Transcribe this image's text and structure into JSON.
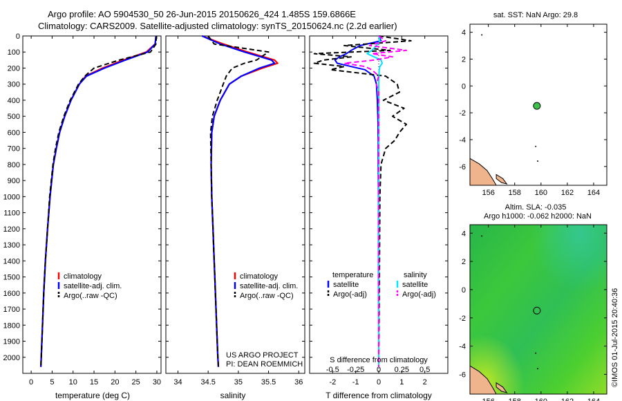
{
  "figure": {
    "title_line1": "Argo profile: AO 5904530_50 26-Jun-2015 20150626_424 1.485S 159.6866E",
    "title_line2": "Climatology: CARS2009. Satellite-adjusted climatology: synTS_20150624.nc (2.2d earlier)",
    "credit": "©IMOS 01-Jul-2015 20:40:36",
    "project_line1": "US ARGO PROJECT",
    "project_line2": "PI: DEAN ROEMMICH",
    "colors": {
      "climatology": "#ff0000",
      "satellite_temp": "#0000ff",
      "argo": "#000000",
      "satellite_sal": "#00e5ff",
      "argo_sal": "#ff00ff",
      "map_ocean": "#3cc24a",
      "land": "#f0b48c"
    }
  },
  "chart_data": [
    {
      "type": "line",
      "id": "temperature",
      "xlabel": "temperature (deg C)",
      "ylabel": "",
      "xlim": [
        -2,
        31
      ],
      "ylim": [
        2100,
        0
      ],
      "xticks": [
        0,
        5,
        10,
        15,
        20,
        25,
        30
      ],
      "yticks": [
        0,
        100,
        200,
        300,
        400,
        500,
        600,
        700,
        800,
        900,
        1000,
        1100,
        1200,
        1300,
        1400,
        1500,
        1600,
        1700,
        1800,
        1900,
        2000
      ],
      "depth": [
        0,
        50,
        100,
        150,
        200,
        250,
        300,
        400,
        500,
        600,
        700,
        800,
        900,
        1000,
        1200,
        1400,
        1600,
        1800,
        2000,
        2060
      ],
      "legend": [
        "climatology",
        "satellite-adj. clim.",
        "Argo(..raw -QC)"
      ],
      "series": [
        {
          "name": "climatology",
          "style": "solid",
          "values": [
            29.8,
            29.6,
            27.5,
            22,
            17,
            13,
            11.5,
            9.5,
            8,
            6.8,
            6,
            5.3,
            4.9,
            4.5,
            3.9,
            3.4,
            3,
            2.7,
            2.4,
            2.3
          ]
        },
        {
          "name": "satellite-adj. clim.",
          "style": "solid",
          "values": [
            29.8,
            29.6,
            27.8,
            22.5,
            17.5,
            13.2,
            11.5,
            9.5,
            8,
            6.8,
            6,
            5.3,
            4.9,
            4.5,
            3.9,
            3.4,
            3,
            2.7,
            2.4,
            2.3
          ]
        },
        {
          "name": "Argo(..raw -QC)",
          "style": "dashed",
          "values": [
            29.9,
            29.8,
            28.5,
            21,
            15,
            12.8,
            11.3,
            9.3,
            7.8,
            6.6,
            5.8,
            5.2,
            4.8,
            4.4,
            3.9,
            3.4,
            3,
            2.7,
            2.4,
            2.3
          ]
        }
      ]
    },
    {
      "type": "line",
      "id": "salinity",
      "xlabel": "salinity",
      "xlim": [
        33.8,
        36.1
      ],
      "ylim": [
        2100,
        0
      ],
      "xticks": [
        34,
        34.5,
        35,
        35.5,
        36
      ],
      "depth": [
        0,
        50,
        100,
        150,
        170,
        200,
        250,
        300,
        400,
        500,
        600,
        800,
        1000,
        1200,
        1400,
        1600,
        1800,
        2000,
        2060
      ],
      "legend": [
        "climatology",
        "satellite-adj. clim.",
        "Argo(..raw -QC)"
      ],
      "series": [
        {
          "name": "climatology",
          "style": "solid",
          "values": [
            34.4,
            34.75,
            35.15,
            35.6,
            35.65,
            35.4,
            35.05,
            34.85,
            34.7,
            34.6,
            34.56,
            34.55,
            34.56,
            34.58,
            34.6,
            34.62,
            34.64,
            34.66,
            34.67
          ]
        },
        {
          "name": "satellite-adj. clim.",
          "style": "solid",
          "values": [
            34.4,
            34.7,
            35.1,
            35.55,
            35.6,
            35.35,
            35.05,
            34.85,
            34.7,
            34.6,
            34.56,
            34.55,
            34.56,
            34.58,
            34.6,
            34.62,
            34.64,
            34.66,
            34.67
          ]
        },
        {
          "name": "Argo(..raw -QC)",
          "style": "dashed",
          "values": [
            34.5,
            34.6,
            35.5,
            35.3,
            35.1,
            34.9,
            34.8,
            34.75,
            34.65,
            34.57,
            34.54,
            34.55,
            34.56,
            34.58,
            34.6,
            34.62,
            34.64,
            34.66,
            34.67
          ]
        }
      ]
    },
    {
      "type": "line",
      "id": "difference",
      "xlabel_bottom": "T difference from climatology",
      "xlabel_top": "S difference from climatology",
      "xlim_T": [
        -3,
        3
      ],
      "xticks_T": [
        -2,
        -1,
        0,
        1,
        2
      ],
      "xtick_labels_S": [
        "-0.5",
        "-0.25",
        "0",
        "0.25",
        "0.5"
      ],
      "ylim": [
        2100,
        0
      ],
      "depth": [
        0,
        30,
        60,
        90,
        110,
        130,
        150,
        170,
        190,
        210,
        250,
        300,
        350,
        400,
        450,
        500,
        550,
        600,
        650,
        700,
        800,
        1000,
        1500,
        2060
      ],
      "legend_headers": [
        "temperature",
        "salinity"
      ],
      "legend": [
        "satellite",
        "Argo(-adj)",
        "satellite",
        "Argo(-adj)"
      ],
      "series": [
        {
          "name": "satellite",
          "quantity": "temperature",
          "style": "solid",
          "values": [
            0,
            0.1,
            -0.8,
            -1.2,
            -1.4,
            -1.7,
            -1.9,
            -1.8,
            -1.2,
            -0.6,
            -0.2,
            -0.1,
            -0.08,
            -0.06,
            -0.05,
            -0.04,
            -0.03,
            -0.03,
            -0.02,
            -0.02,
            -0.02,
            -0.01,
            -0.01,
            0
          ]
        },
        {
          "name": "Argo(-adj)",
          "quantity": "temperature",
          "style": "dashed",
          "values": [
            0,
            1.4,
            -1.5,
            0.5,
            -2.8,
            -1.2,
            -2.4,
            -2.8,
            -1.5,
            -2.1,
            0.3,
            0.8,
            0.9,
            0.2,
            1.1,
            0.6,
            1.2,
            0.9,
            0.7,
            0.3,
            0.1,
            0.05,
            0.03,
            0
          ]
        },
        {
          "name": "satellite",
          "quantity": "salinity",
          "style": "solid",
          "values": [
            0,
            0.05,
            -0.1,
            -0.3,
            -0.5,
            -0.2,
            0.1,
            0.15,
            0.05,
            0.02,
            0.01,
            0,
            0,
            0,
            0,
            0,
            0,
            0,
            0,
            0,
            0,
            0,
            0,
            0
          ]
        },
        {
          "name": "Argo(-adj)",
          "quantity": "salinity",
          "style": "dashed",
          "values": [
            0,
            0.3,
            -0.4,
            1.2,
            -0.3,
            0.6,
            -0.2,
            -1.5,
            -0.6,
            -0.3,
            0,
            -0.1,
            0,
            0,
            0,
            0,
            0,
            0,
            0,
            0,
            0,
            0,
            0,
            0
          ]
        }
      ]
    },
    {
      "type": "scatter",
      "id": "sst_map",
      "title": "sat. SST: NaN Argo: 29.8",
      "xlim": [
        154.6,
        165
      ],
      "ylim": [
        -7.4,
        4.6
      ],
      "xticks": [
        156,
        158,
        160,
        162,
        164
      ],
      "yticks": [
        4,
        2,
        0,
        -2,
        -4,
        -6
      ],
      "profile_position": {
        "lon": 159.6866,
        "lat": -1.485
      }
    },
    {
      "type": "heatmap",
      "id": "sla_map",
      "title_line1": "Altim. SLA: -0.035",
      "title_line2": "Argo h1000: -0.062 h2000: NaN",
      "xlim": [
        154.6,
        165
      ],
      "ylim": [
        -7.4,
        4.6
      ],
      "xticks": [
        156,
        158,
        160,
        162,
        164
      ],
      "yticks": [
        4,
        2,
        0,
        -2,
        -4,
        -6
      ],
      "profile_position": {
        "lon": 159.6866,
        "lat": -1.485
      }
    }
  ]
}
